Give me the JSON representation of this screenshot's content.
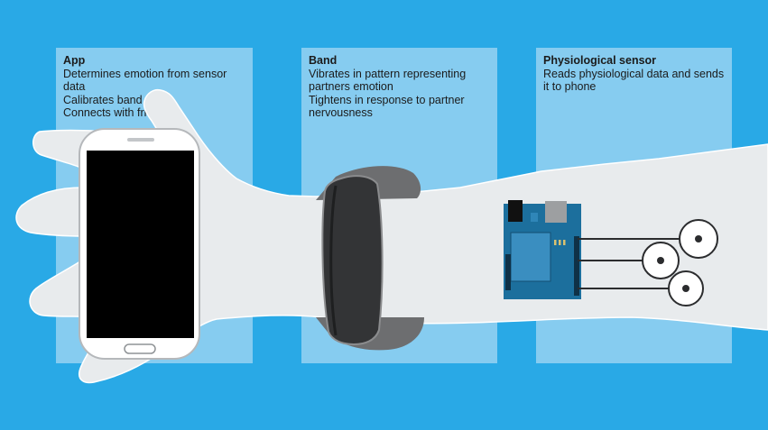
{
  "panels": [
    {
      "title": "App",
      "lines": [
        "Determines emotion from sensor data",
        "Calibrates band",
        "Connects with friends"
      ]
    },
    {
      "title": "Band",
      "lines": [
        "Vibrates in pattern representing",
        "partners emotion",
        "Tightens in response to partner",
        "nervousness"
      ]
    },
    {
      "title": "Physiological sensor",
      "lines": [
        "Reads physiological data and sends",
        "it to phone"
      ]
    }
  ],
  "colors": {
    "background": "#29a9e6",
    "panel": "#86ccf0",
    "skin": "#e8ebed",
    "band": "#505152",
    "board": "#1c6f9d"
  }
}
